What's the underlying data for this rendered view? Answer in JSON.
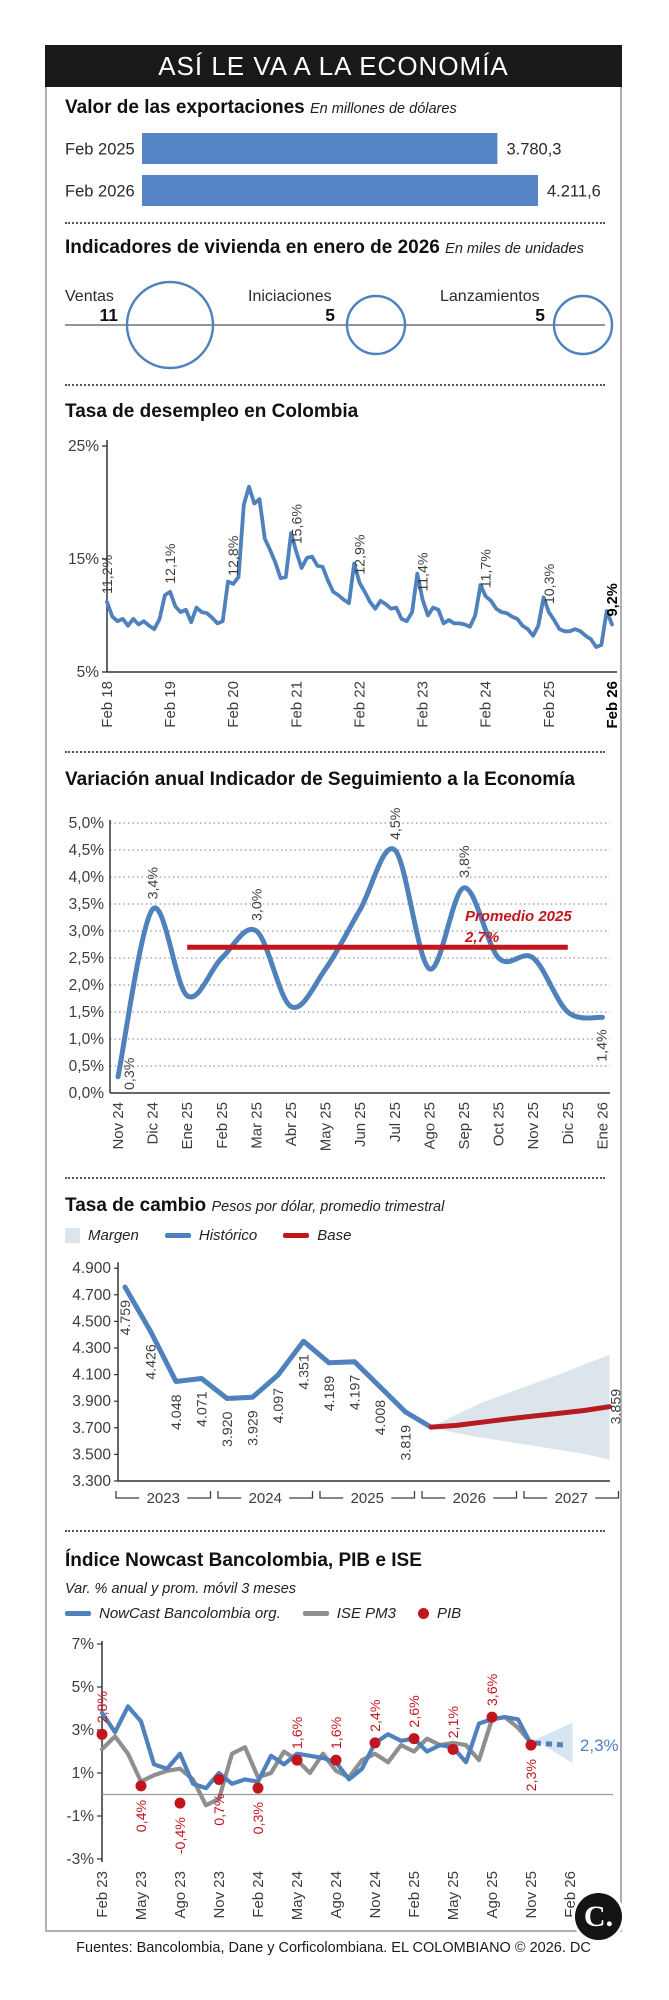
{
  "header": {
    "title": "ASÍ LE VA A LA ECONOMÍA"
  },
  "colors": {
    "blue": "#4f81bd",
    "bar_blue": "#5585c4",
    "red": "#c2161f",
    "gray_line": "#8f8f8f",
    "margin_band": "#dce5ec",
    "forecast_cone": "#c9dcee"
  },
  "chart_data": [
    {
      "id": "exports",
      "type": "bar",
      "title": "Valor de las exportaciones",
      "subtitle": "En millones de dólares",
      "categories": [
        "Feb 2025",
        "Feb 2026"
      ],
      "values": [
        3780.3,
        4211.6
      ],
      "value_labels": [
        "3.780,3",
        "4.211,6"
      ]
    },
    {
      "id": "housing",
      "type": "bubble",
      "title": "Indicadores de vivienda en enero de 2026",
      "subtitle": "En miles de unidades",
      "items": [
        {
          "label": "Ventas",
          "value": 11,
          "value_label": "11"
        },
        {
          "label": "Iniciaciones",
          "value": 5,
          "value_label": "5"
        },
        {
          "label": "Lanzamientos",
          "value": 5,
          "value_label": "5"
        }
      ]
    },
    {
      "id": "unemployment",
      "type": "line",
      "title": "Tasa de desempleo en Colombia",
      "ylim": [
        5,
        25
      ],
      "yticks": [
        {
          "v": 25,
          "t": "25%"
        },
        {
          "v": 15,
          "t": "15%"
        },
        {
          "v": 5,
          "t": "5%"
        }
      ],
      "x_tick_labels": [
        "Feb 18",
        "Feb 19",
        "Feb 20",
        "Feb 21",
        "Feb 22",
        "Feb 23",
        "Feb 24",
        "Feb 25",
        "Feb 26"
      ],
      "monthly_values": [
        11.2,
        9.9,
        9.5,
        9.7,
        9.1,
        9.7,
        9.2,
        9.5,
        9.1,
        8.8,
        9.7,
        11.8,
        12.1,
        10.8,
        10.3,
        10.5,
        9.4,
        10.7,
        10.3,
        10.2,
        9.8,
        9.3,
        9.5,
        13.0,
        12.8,
        13.4,
        19.8,
        21.4,
        19.9,
        20.3,
        16.8,
        15.8,
        14.7,
        13.3,
        13.4,
        17.3,
        15.6,
        14.2,
        15.1,
        15.2,
        14.4,
        14.3,
        13.1,
        12.1,
        11.8,
        11.4,
        11.1,
        14.6,
        12.9,
        12.1,
        11.2,
        10.6,
        11.3,
        11.0,
        10.6,
        10.7,
        9.7,
        9.5,
        10.3,
        13.7,
        11.4,
        10.0,
        10.7,
        10.5,
        9.3,
        9.6,
        9.3,
        9.3,
        9.2,
        9.0,
        10.0,
        12.7,
        11.7,
        11.3,
        10.6,
        10.3,
        10.2,
        9.9,
        9.7,
        9.1,
        8.8,
        8.2,
        9.1,
        11.6,
        10.3,
        9.6,
        8.8,
        8.6,
        8.6,
        8.8,
        8.6,
        8.2,
        7.9,
        7.2,
        7.4,
        10.4,
        9.2
      ],
      "point_labels": [
        {
          "month": 0,
          "text": "11,2%"
        },
        {
          "month": 12,
          "text": "12,1%"
        },
        {
          "month": 24,
          "text": "12,8%"
        },
        {
          "month": 36,
          "text": "15,6%"
        },
        {
          "month": 48,
          "text": "12,9%"
        },
        {
          "month": 60,
          "text": "11,4%"
        },
        {
          "month": 72,
          "text": "11,7%"
        },
        {
          "month": 84,
          "text": "10,3%"
        },
        {
          "month": 96,
          "text": "9,2%",
          "bold": true
        }
      ]
    },
    {
      "id": "ise",
      "type": "line",
      "title": "Variación anual Indicador de Seguimiento a la Economía",
      "ylim": [
        0,
        5
      ],
      "ytick_labels": [
        "5,0%",
        "4,5%",
        "4,0%",
        "3,5%",
        "3,0%",
        "2,5%",
        "2,0%",
        "1,5%",
        "1,0%",
        "0,5%",
        "0,0%"
      ],
      "categories": [
        "Nov 24",
        "Dic 24",
        "Ene 25",
        "Feb 25",
        "Mar 25",
        "Abr 25",
        "May 25",
        "Jun 25",
        "Jul 25",
        "Ago 25",
        "Sep 25",
        "Oct 25",
        "Nov 25",
        "Dic 25",
        "Ene 26"
      ],
      "values": [
        0.3,
        3.4,
        1.8,
        2.5,
        3.0,
        1.6,
        2.3,
        3.4,
        4.5,
        2.3,
        3.8,
        2.5,
        2.5,
        1.5,
        1.4
      ],
      "point_labels": [
        {
          "i": 0,
          "text": "0,3%",
          "pos": "right"
        },
        {
          "i": 1,
          "text": "3,4%",
          "pos": "above"
        },
        {
          "i": 4,
          "text": "3,0%",
          "pos": "above"
        },
        {
          "i": 8,
          "text": "4,5%",
          "pos": "above"
        },
        {
          "i": 10,
          "text": "3,8%",
          "pos": "above"
        },
        {
          "i": 14,
          "text": "1,4%",
          "pos": "below"
        }
      ],
      "avg_line": {
        "value": 2.7,
        "from": 2,
        "to": 13,
        "label_line1": "Promedio 2025",
        "label_line2": "2,7%"
      }
    },
    {
      "id": "fx",
      "type": "line",
      "title": "Tasa de cambio",
      "subtitle": "Pesos por dólar, promedio trimestral",
      "legend": [
        {
          "label": "Margen",
          "type": "area"
        },
        {
          "label": "Histórico",
          "type": "line-blue"
        },
        {
          "label": "Base",
          "type": "line-red"
        }
      ],
      "ylim": [
        3300,
        4900
      ],
      "yticks": [
        {
          "v": 4900,
          "t": "4.900"
        },
        {
          "v": 4700,
          "t": "4.700"
        },
        {
          "v": 4500,
          "t": "4.500"
        },
        {
          "v": 4300,
          "t": "4.300"
        },
        {
          "v": 4100,
          "t": "4.100"
        },
        {
          "v": 3900,
          "t": "3.900"
        },
        {
          "v": 3700,
          "t": "3.700"
        },
        {
          "v": 3500,
          "t": "3.500"
        },
        {
          "v": 3300,
          "t": "3.300"
        }
      ],
      "historical": {
        "values": [
          4759,
          4426,
          4048,
          4071,
          3920,
          3929,
          4097,
          4351,
          4189,
          4197,
          4008,
          3819,
          3705
        ],
        "labels": [
          "4.759",
          "4.426",
          "4.048",
          "4.071",
          "3.920",
          "3.929",
          "4.097",
          "4.351",
          "4.189",
          "4.197",
          "4.008",
          "3.819"
        ]
      },
      "base": {
        "start_index": 12,
        "values": [
          3705,
          3718,
          3742,
          3766,
          3788,
          3808,
          3830,
          3859
        ],
        "end_label": "3.859"
      },
      "margin_band": {
        "start_index": 12,
        "upper": [
          3705,
          3800,
          3890,
          3960,
          4030,
          4100,
          4175,
          4250
        ],
        "lower": [
          3705,
          3660,
          3625,
          3595,
          3565,
          3535,
          3505,
          3460
        ]
      },
      "year_groups": [
        "2023",
        "2024",
        "2025",
        "2026",
        "2027"
      ]
    },
    {
      "id": "nowcast",
      "type": "line",
      "title": "Índice Nowcast Bancolombia, PIB e ISE",
      "subtitle": "Var. % anual y prom. móvil 3 meses",
      "legend": [
        {
          "label": "NowCast Bancolombia org.",
          "type": "line-blue"
        },
        {
          "label": "ISE PM3",
          "type": "line-gray"
        },
        {
          "label": "PIB",
          "type": "dot-red"
        }
      ],
      "ylim": [
        -3,
        7
      ],
      "yticks": [
        {
          "v": 7,
          "t": "7%"
        },
        {
          "v": 5,
          "t": "5%"
        },
        {
          "v": 3,
          "t": "3%"
        },
        {
          "v": 1,
          "t": "1%"
        },
        {
          "v": -1,
          "t": "-1%"
        },
        {
          "v": -3,
          "t": "-3%"
        }
      ],
      "x_tick_labels": [
        "Feb 23",
        "May 23",
        "Ago 23",
        "Nov 23",
        "Feb 24",
        "May 24",
        "Ago 24",
        "Nov 24",
        "Feb 25",
        "May 25",
        "Ago 25",
        "Nov 25",
        "Feb 26"
      ],
      "nowcast_values": [
        3.8,
        2.9,
        4.1,
        3.4,
        1.4,
        1.2,
        1.9,
        0.5,
        0.3,
        1.0,
        0.5,
        0.7,
        0.6,
        1.8,
        1.4,
        1.9,
        1.8,
        1.7,
        1.5,
        0.7,
        1.2,
        2.4,
        2.8,
        2.5,
        2.6,
        2.0,
        2.3,
        2.2,
        1.5,
        3.3,
        3.5,
        3.6,
        3.5,
        2.35
      ],
      "ise_pm3_values": [
        2.1,
        2.7,
        1.9,
        0.6,
        0.9,
        1.1,
        1.2,
        0.7,
        -0.5,
        -0.2,
        1.9,
        2.2,
        0.8,
        1.0,
        2.0,
        1.6,
        1.0,
        1.9,
        1.1,
        0.8,
        1.6,
        1.9,
        1.5,
        2.3,
        2.0,
        2.6,
        2.3,
        2.4,
        2.3,
        1.6,
        3.5,
        3.6,
        3.1,
        2.4
      ],
      "pib_points": [
        {
          "month": 0,
          "value": 2.8,
          "label": "2,8%",
          "label_pos": "above"
        },
        {
          "month": 3,
          "value": 0.4,
          "label": "0,4%",
          "label_pos": "below"
        },
        {
          "month": 6,
          "value": -0.4,
          "label": "-0,4%",
          "label_pos": "below"
        },
        {
          "month": 9,
          "value": 0.7,
          "label": "0,7%",
          "label_pos": "below"
        },
        {
          "month": 12,
          "value": 0.3,
          "label": "0,3%",
          "label_pos": "below"
        },
        {
          "month": 15,
          "value": 1.6,
          "label": "1,6%",
          "label_pos": "above"
        },
        {
          "month": 18,
          "value": 1.6,
          "label": "1,6%",
          "label_pos": "above"
        },
        {
          "month": 21,
          "value": 2.4,
          "label": "2,4%",
          "label_pos": "above"
        },
        {
          "month": 24,
          "value": 2.6,
          "label": "2,6%",
          "label_pos": "above"
        },
        {
          "month": 27,
          "value": 2.1,
          "label": "2,1%",
          "label_pos": "above"
        },
        {
          "month": 30,
          "value": 3.6,
          "label": "3,6%",
          "label_pos": "above"
        },
        {
          "month": 33,
          "value": 2.3,
          "label": "2,3%",
          "label_pos": "below"
        }
      ],
      "forecast": {
        "from_month": 33,
        "to_month": 35.6,
        "value": 2.3,
        "label": "2,3%"
      }
    }
  ],
  "footer": {
    "text": "Fuentes: Bancolombia, Dane y Corficolombiana. EL COLOMBIANO © 2026. DC",
    "logo_letter": "C."
  }
}
